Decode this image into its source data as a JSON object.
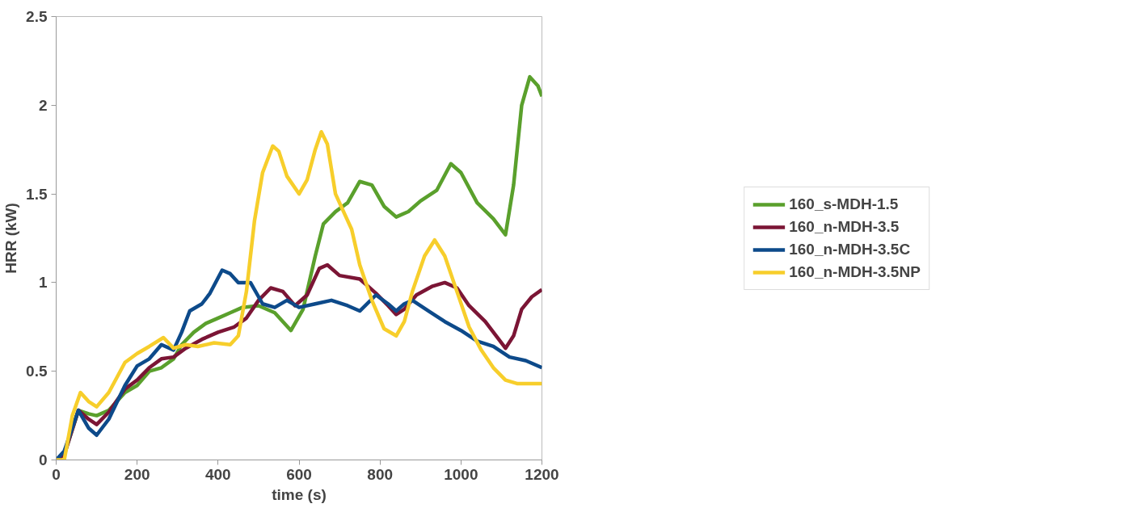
{
  "chart_data": {
    "type": "line",
    "xlabel": "time (s)",
    "ylabel": "HRR (kW)",
    "xlim": [
      0,
      1200
    ],
    "xticks": [
      0,
      200,
      400,
      600,
      800,
      1000,
      1200
    ],
    "ylim": [
      0,
      2.5
    ],
    "yticks": [
      0,
      0.5,
      1,
      1.5,
      2,
      2.5
    ],
    "grid": false,
    "legend": "right",
    "marker": "none",
    "line_style": "solid",
    "series": [
      {
        "name": "160_s-MDH-1.5",
        "color": "#5aa02c",
        "x": [
          0,
          20,
          55,
          80,
          100,
          130,
          170,
          200,
          230,
          260,
          290,
          310,
          340,
          370,
          400,
          430,
          460,
          500,
          540,
          580,
          610,
          640,
          660,
          690,
          720,
          750,
          780,
          810,
          840,
          870,
          900,
          940,
          975,
          1000,
          1040,
          1080,
          1110,
          1130,
          1150,
          1170,
          1190,
          1200
        ],
        "values": [
          0,
          0.03,
          0.28,
          0.26,
          0.25,
          0.28,
          0.38,
          0.42,
          0.5,
          0.52,
          0.57,
          0.65,
          0.72,
          0.77,
          0.8,
          0.83,
          0.86,
          0.87,
          0.83,
          0.73,
          0.85,
          1.15,
          1.33,
          1.4,
          1.45,
          1.57,
          1.55,
          1.43,
          1.37,
          1.4,
          1.46,
          1.52,
          1.67,
          1.62,
          1.45,
          1.36,
          1.27,
          1.55,
          2.0,
          2.16,
          2.11,
          2.05
        ]
      },
      {
        "name": "160_n-MDH-3.5",
        "color": "#7b1535",
        "x": [
          0,
          20,
          55,
          80,
          100,
          130,
          170,
          200,
          230,
          260,
          290,
          320,
          360,
          400,
          440,
          470,
          500,
          530,
          560,
          590,
          620,
          650,
          670,
          700,
          750,
          790,
          820,
          840,
          860,
          890,
          930,
          960,
          990,
          1020,
          1060,
          1090,
          1110,
          1130,
          1150,
          1175,
          1200
        ],
        "values": [
          0,
          0.03,
          0.28,
          0.23,
          0.2,
          0.27,
          0.4,
          0.45,
          0.52,
          0.57,
          0.58,
          0.63,
          0.68,
          0.72,
          0.75,
          0.8,
          0.9,
          0.97,
          0.95,
          0.87,
          0.93,
          1.08,
          1.1,
          1.04,
          1.02,
          0.94,
          0.87,
          0.82,
          0.85,
          0.93,
          0.98,
          1.0,
          0.97,
          0.87,
          0.78,
          0.69,
          0.63,
          0.7,
          0.85,
          0.92,
          0.96
        ]
      },
      {
        "name": "160_n-MDH-3.5C",
        "color": "#0d4a8a",
        "x": [
          0,
          20,
          55,
          80,
          100,
          130,
          170,
          200,
          230,
          260,
          290,
          310,
          330,
          360,
          380,
          410,
          430,
          450,
          480,
          510,
          540,
          570,
          600,
          640,
          680,
          720,
          750,
          790,
          820,
          840,
          860,
          880,
          920,
          960,
          1000,
          1040,
          1080,
          1120,
          1160,
          1200
        ],
        "values": [
          0,
          0.05,
          0.28,
          0.18,
          0.14,
          0.23,
          0.42,
          0.53,
          0.57,
          0.65,
          0.62,
          0.72,
          0.84,
          0.88,
          0.94,
          1.07,
          1.05,
          1.0,
          1.0,
          0.88,
          0.86,
          0.9,
          0.86,
          0.88,
          0.9,
          0.87,
          0.84,
          0.93,
          0.88,
          0.84,
          0.88,
          0.9,
          0.84,
          0.78,
          0.73,
          0.67,
          0.64,
          0.58,
          0.56,
          0.52
        ]
      },
      {
        "name": "160_n-MDH-3.5NP",
        "color": "#f7ce2b",
        "x": [
          0,
          20,
          40,
          60,
          80,
          100,
          130,
          170,
          200,
          230,
          265,
          290,
          320,
          350,
          390,
          430,
          450,
          470,
          490,
          510,
          535,
          550,
          570,
          600,
          620,
          640,
          655,
          670,
          690,
          710,
          730,
          750,
          780,
          810,
          840,
          860,
          880,
          910,
          935,
          960,
          990,
          1020,
          1050,
          1080,
          1110,
          1140,
          1200
        ],
        "values": [
          0,
          0,
          0.25,
          0.38,
          0.33,
          0.3,
          0.38,
          0.55,
          0.6,
          0.64,
          0.69,
          0.63,
          0.65,
          0.64,
          0.66,
          0.65,
          0.7,
          0.95,
          1.35,
          1.62,
          1.77,
          1.74,
          1.6,
          1.5,
          1.58,
          1.75,
          1.85,
          1.78,
          1.5,
          1.4,
          1.3,
          1.1,
          0.9,
          0.74,
          0.7,
          0.78,
          0.95,
          1.15,
          1.24,
          1.15,
          0.95,
          0.75,
          0.62,
          0.52,
          0.45,
          0.43,
          0.43
        ]
      }
    ]
  }
}
